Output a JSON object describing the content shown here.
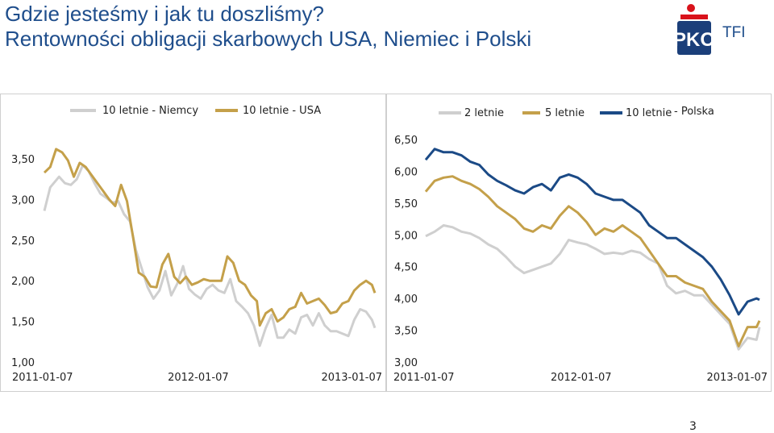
{
  "header": {
    "title_line1": "Gdzie jesteśmy i jak tu doszliśmy?",
    "title_line2": "Rentowności obligacji skarbowych USA, Niemiec i Polski",
    "logo_text": "TFI"
  },
  "footer": {
    "page_number": "3"
  },
  "colors": {
    "title": "#1f4e8c",
    "logo_red": "#d9121b",
    "logo_navy": "#1b3f7a"
  },
  "chart_data": [
    {
      "type": "line",
      "legend_position": "top",
      "xlim": [
        "2011-01-07",
        "2013-03-01"
      ],
      "x_ticks": [
        "2011-01-07",
        "2012-01-07",
        "2013-01-07"
      ],
      "ylim": [
        1.0,
        3.5
      ],
      "y_ticks": [
        "1,00",
        "1,50",
        "2,00",
        "2,50",
        "3,00",
        "3,50"
      ],
      "grid": false,
      "series": [
        {
          "name": "10 letnie - Niemcy",
          "color": "#cfcfcf",
          "points": [
            [
              "2011-01-07",
              2.86
            ],
            [
              "2011-01-21",
              3.15
            ],
            [
              "2011-02-11",
              3.28
            ],
            [
              "2011-02-25",
              3.2
            ],
            [
              "2011-03-11",
              3.18
            ],
            [
              "2011-03-25",
              3.25
            ],
            [
              "2011-04-08",
              3.42
            ],
            [
              "2011-04-22",
              3.35
            ],
            [
              "2011-05-06",
              3.2
            ],
            [
              "2011-05-20",
              3.07
            ],
            [
              "2011-06-03",
              3.02
            ],
            [
              "2011-06-17",
              2.96
            ],
            [
              "2011-07-01",
              2.98
            ],
            [
              "2011-07-15",
              2.82
            ],
            [
              "2011-07-29",
              2.73
            ],
            [
              "2011-08-12",
              2.38
            ],
            [
              "2011-08-26",
              2.15
            ],
            [
              "2011-09-09",
              1.92
            ],
            [
              "2011-09-23",
              1.78
            ],
            [
              "2011-10-07",
              1.88
            ],
            [
              "2011-10-21",
              2.12
            ],
            [
              "2011-11-04",
              1.82
            ],
            [
              "2011-11-18",
              1.96
            ],
            [
              "2011-12-02",
              2.18
            ],
            [
              "2011-12-16",
              1.9
            ],
            [
              "2011-12-30",
              1.83
            ],
            [
              "2012-01-13",
              1.78
            ],
            [
              "2012-01-27",
              1.9
            ],
            [
              "2012-02-10",
              1.95
            ],
            [
              "2012-02-24",
              1.88
            ],
            [
              "2012-03-09",
              1.85
            ],
            [
              "2012-03-23",
              2.02
            ],
            [
              "2012-04-06",
              1.75
            ],
            [
              "2012-04-20",
              1.68
            ],
            [
              "2012-05-04",
              1.6
            ],
            [
              "2012-05-18",
              1.45
            ],
            [
              "2012-06-01",
              1.2
            ],
            [
              "2012-06-15",
              1.42
            ],
            [
              "2012-06-29",
              1.58
            ],
            [
              "2012-07-13",
              1.3
            ],
            [
              "2012-07-27",
              1.3
            ],
            [
              "2012-08-10",
              1.4
            ],
            [
              "2012-08-24",
              1.35
            ],
            [
              "2012-09-07",
              1.55
            ],
            [
              "2012-09-21",
              1.58
            ],
            [
              "2012-10-05",
              1.45
            ],
            [
              "2012-10-19",
              1.6
            ],
            [
              "2012-11-02",
              1.45
            ],
            [
              "2012-11-16",
              1.38
            ],
            [
              "2012-11-30",
              1.38
            ],
            [
              "2012-12-14",
              1.35
            ],
            [
              "2012-12-28",
              1.32
            ],
            [
              "2013-01-11",
              1.52
            ],
            [
              "2013-01-25",
              1.65
            ],
            [
              "2013-02-08",
              1.62
            ],
            [
              "2013-02-22",
              1.52
            ],
            [
              "2013-03-01",
              1.42
            ]
          ]
        },
        {
          "name": "10 letnie - USA",
          "color": "#c4a04a",
          "points": [
            [
              "2011-01-07",
              3.33
            ],
            [
              "2011-01-21",
              3.4
            ],
            [
              "2011-02-04",
              3.62
            ],
            [
              "2011-02-18",
              3.58
            ],
            [
              "2011-03-04",
              3.48
            ],
            [
              "2011-03-18",
              3.28
            ],
            [
              "2011-04-01",
              3.45
            ],
            [
              "2011-04-15",
              3.4
            ],
            [
              "2011-04-29",
              3.3
            ],
            [
              "2011-05-13",
              3.2
            ],
            [
              "2011-05-27",
              3.1
            ],
            [
              "2011-06-10",
              3.0
            ],
            [
              "2011-06-24",
              2.92
            ],
            [
              "2011-07-08",
              3.18
            ],
            [
              "2011-07-22",
              2.98
            ],
            [
              "2011-08-05",
              2.55
            ],
            [
              "2011-08-19",
              2.1
            ],
            [
              "2011-09-02",
              2.05
            ],
            [
              "2011-09-16",
              1.93
            ],
            [
              "2011-09-30",
              1.92
            ],
            [
              "2011-10-14",
              2.2
            ],
            [
              "2011-10-28",
              2.33
            ],
            [
              "2011-11-11",
              2.05
            ],
            [
              "2011-11-25",
              1.97
            ],
            [
              "2011-12-09",
              2.05
            ],
            [
              "2011-12-23",
              1.95
            ],
            [
              "2012-01-06",
              1.98
            ],
            [
              "2012-01-20",
              2.02
            ],
            [
              "2012-02-03",
              2.0
            ],
            [
              "2012-02-17",
              2.0
            ],
            [
              "2012-03-02",
              2.0
            ],
            [
              "2012-03-16",
              2.3
            ],
            [
              "2012-03-30",
              2.22
            ],
            [
              "2012-04-13",
              2.0
            ],
            [
              "2012-04-27",
              1.95
            ],
            [
              "2012-05-11",
              1.82
            ],
            [
              "2012-05-25",
              1.75
            ],
            [
              "2012-06-01",
              1.45
            ],
            [
              "2012-06-15",
              1.6
            ],
            [
              "2012-06-29",
              1.65
            ],
            [
              "2012-07-13",
              1.5
            ],
            [
              "2012-07-27",
              1.55
            ],
            [
              "2012-08-10",
              1.65
            ],
            [
              "2012-08-24",
              1.68
            ],
            [
              "2012-09-07",
              1.85
            ],
            [
              "2012-09-21",
              1.72
            ],
            [
              "2012-10-05",
              1.75
            ],
            [
              "2012-10-19",
              1.78
            ],
            [
              "2012-11-02",
              1.7
            ],
            [
              "2012-11-16",
              1.6
            ],
            [
              "2012-11-30",
              1.62
            ],
            [
              "2012-12-14",
              1.72
            ],
            [
              "2012-12-28",
              1.75
            ],
            [
              "2013-01-11",
              1.88
            ],
            [
              "2013-01-25",
              1.95
            ],
            [
              "2013-02-08",
              2.0
            ],
            [
              "2013-02-22",
              1.95
            ],
            [
              "2013-03-01",
              1.85
            ]
          ]
        }
      ]
    },
    {
      "type": "line",
      "legend_position": "top",
      "legend_suffix": "- Polska",
      "xlim": [
        "2011-01-07",
        "2013-03-01"
      ],
      "x_ticks": [
        "2011-01-07",
        "2012-01-07",
        "2013-01-07"
      ],
      "ylim": [
        3.0,
        6.5
      ],
      "y_ticks": [
        "3,00",
        "3,50",
        "4,00",
        "4,50",
        "5,00",
        "5,50",
        "6,00",
        "6,50"
      ],
      "grid": false,
      "series": [
        {
          "name": "2 letnie",
          "color": "#cfcfcf",
          "points": [
            [
              "2011-01-07",
              4.98
            ],
            [
              "2011-01-28",
              5.05
            ],
            [
              "2011-02-18",
              5.15
            ],
            [
              "2011-03-11",
              5.12
            ],
            [
              "2011-04-01",
              5.05
            ],
            [
              "2011-04-22",
              5.02
            ],
            [
              "2011-05-13",
              4.95
            ],
            [
              "2011-06-03",
              4.85
            ],
            [
              "2011-06-24",
              4.78
            ],
            [
              "2011-07-15",
              4.65
            ],
            [
              "2011-08-05",
              4.5
            ],
            [
              "2011-08-26",
              4.4
            ],
            [
              "2011-09-16",
              4.45
            ],
            [
              "2011-10-07",
              4.5
            ],
            [
              "2011-10-28",
              4.55
            ],
            [
              "2011-11-18",
              4.7
            ],
            [
              "2011-12-09",
              4.92
            ],
            [
              "2011-12-30",
              4.88
            ],
            [
              "2012-01-20",
              4.85
            ],
            [
              "2012-02-10",
              4.78
            ],
            [
              "2012-03-02",
              4.7
            ],
            [
              "2012-03-23",
              4.72
            ],
            [
              "2012-04-13",
              4.7
            ],
            [
              "2012-05-04",
              4.75
            ],
            [
              "2012-05-25",
              4.72
            ],
            [
              "2012-06-15",
              4.62
            ],
            [
              "2012-07-06",
              4.55
            ],
            [
              "2012-07-27",
              4.2
            ],
            [
              "2012-08-17",
              4.08
            ],
            [
              "2012-09-07",
              4.12
            ],
            [
              "2012-09-28",
              4.05
            ],
            [
              "2012-10-19",
              4.05
            ],
            [
              "2012-11-09",
              3.9
            ],
            [
              "2012-11-30",
              3.75
            ],
            [
              "2012-12-21",
              3.6
            ],
            [
              "2013-01-11",
              3.2
            ],
            [
              "2013-02-01",
              3.38
            ],
            [
              "2013-02-22",
              3.35
            ],
            [
              "2013-03-01",
              3.55
            ]
          ]
        },
        {
          "name": "5 letnie",
          "color": "#c4a04a",
          "points": [
            [
              "2011-01-07",
              5.68
            ],
            [
              "2011-01-28",
              5.85
            ],
            [
              "2011-02-18",
              5.9
            ],
            [
              "2011-03-11",
              5.92
            ],
            [
              "2011-04-01",
              5.85
            ],
            [
              "2011-04-22",
              5.8
            ],
            [
              "2011-05-13",
              5.72
            ],
            [
              "2011-06-03",
              5.6
            ],
            [
              "2011-06-24",
              5.45
            ],
            [
              "2011-07-15",
              5.35
            ],
            [
              "2011-08-05",
              5.25
            ],
            [
              "2011-08-26",
              5.1
            ],
            [
              "2011-09-16",
              5.05
            ],
            [
              "2011-10-07",
              5.15
            ],
            [
              "2011-10-28",
              5.1
            ],
            [
              "2011-11-18",
              5.3
            ],
            [
              "2011-12-09",
              5.45
            ],
            [
              "2011-12-30",
              5.35
            ],
            [
              "2012-01-20",
              5.2
            ],
            [
              "2012-02-10",
              5.0
            ],
            [
              "2012-03-02",
              5.1
            ],
            [
              "2012-03-23",
              5.05
            ],
            [
              "2012-04-13",
              5.15
            ],
            [
              "2012-05-04",
              5.05
            ],
            [
              "2012-05-25",
              4.95
            ],
            [
              "2012-06-15",
              4.75
            ],
            [
              "2012-07-06",
              4.55
            ],
            [
              "2012-07-27",
              4.35
            ],
            [
              "2012-08-17",
              4.35
            ],
            [
              "2012-09-07",
              4.25
            ],
            [
              "2012-09-28",
              4.2
            ],
            [
              "2012-10-19",
              4.15
            ],
            [
              "2012-11-09",
              3.95
            ],
            [
              "2012-11-30",
              3.8
            ],
            [
              "2012-12-21",
              3.65
            ],
            [
              "2013-01-11",
              3.25
            ],
            [
              "2013-02-01",
              3.55
            ],
            [
              "2013-02-22",
              3.55
            ],
            [
              "2013-03-01",
              3.65
            ]
          ]
        },
        {
          "name": "10 letnie",
          "color": "#1b4a86",
          "points": [
            [
              "2011-01-07",
              6.18
            ],
            [
              "2011-01-28",
              6.35
            ],
            [
              "2011-02-18",
              6.3
            ],
            [
              "2011-03-11",
              6.3
            ],
            [
              "2011-04-01",
              6.25
            ],
            [
              "2011-04-22",
              6.15
            ],
            [
              "2011-05-13",
              6.1
            ],
            [
              "2011-06-03",
              5.95
            ],
            [
              "2011-06-24",
              5.85
            ],
            [
              "2011-07-15",
              5.78
            ],
            [
              "2011-08-05",
              5.7
            ],
            [
              "2011-08-26",
              5.65
            ],
            [
              "2011-09-16",
              5.75
            ],
            [
              "2011-10-07",
              5.8
            ],
            [
              "2011-10-28",
              5.7
            ],
            [
              "2011-11-18",
              5.9
            ],
            [
              "2011-12-09",
              5.95
            ],
            [
              "2011-12-30",
              5.9
            ],
            [
              "2012-01-20",
              5.8
            ],
            [
              "2012-02-10",
              5.65
            ],
            [
              "2012-03-02",
              5.6
            ],
            [
              "2012-03-23",
              5.55
            ],
            [
              "2012-04-13",
              5.55
            ],
            [
              "2012-05-04",
              5.45
            ],
            [
              "2012-05-25",
              5.35
            ],
            [
              "2012-06-15",
              5.15
            ],
            [
              "2012-07-06",
              5.05
            ],
            [
              "2012-07-27",
              4.95
            ],
            [
              "2012-08-17",
              4.95
            ],
            [
              "2012-09-07",
              4.85
            ],
            [
              "2012-09-28",
              4.75
            ],
            [
              "2012-10-19",
              4.65
            ],
            [
              "2012-11-09",
              4.5
            ],
            [
              "2012-11-30",
              4.3
            ],
            [
              "2012-12-21",
              4.05
            ],
            [
              "2013-01-11",
              3.75
            ],
            [
              "2013-02-01",
              3.95
            ],
            [
              "2013-02-22",
              4.0
            ],
            [
              "2013-03-01",
              3.98
            ]
          ]
        }
      ]
    }
  ]
}
